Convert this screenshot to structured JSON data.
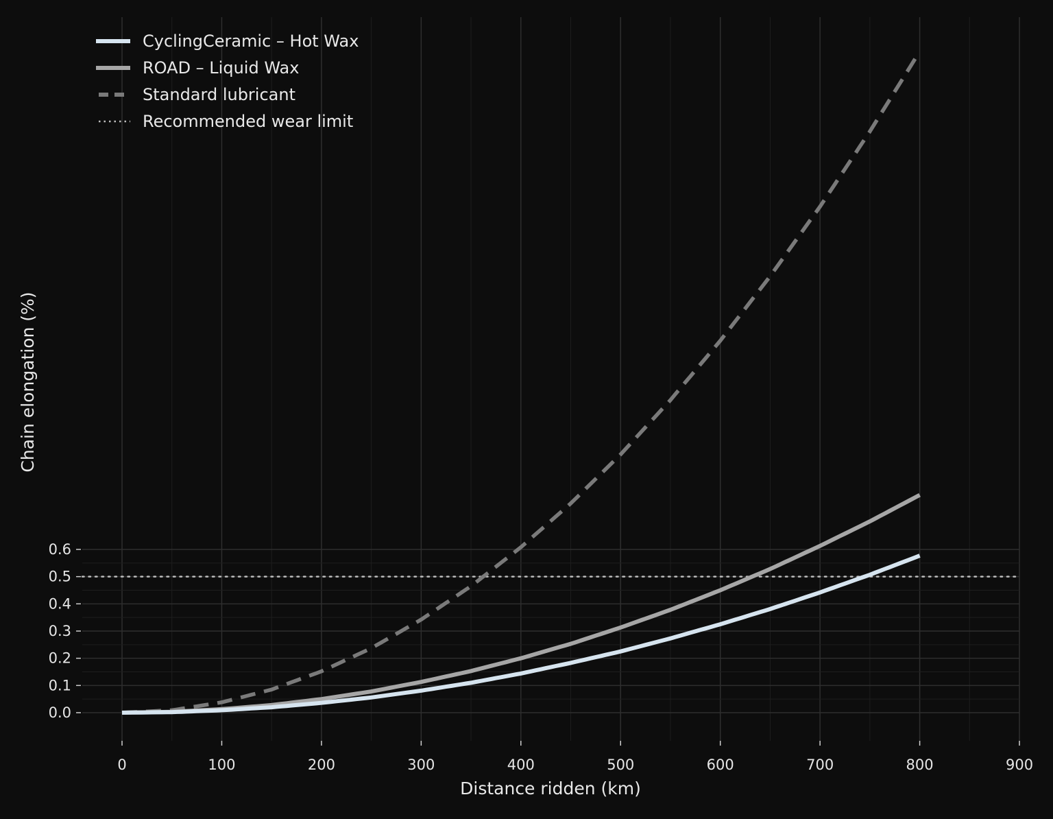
{
  "chart_data": {
    "type": "line",
    "title": "",
    "xlabel": "Distance ridden (km)",
    "ylabel": "Chain elongation (%)",
    "xlim": [
      -40,
      900
    ],
    "ylim_visible_ticks": [
      0.0,
      0.6
    ],
    "x_ticks": [
      0,
      100,
      200,
      300,
      400,
      500,
      600,
      700,
      800,
      900
    ],
    "x_tick_labels": [
      "0",
      "100",
      "200",
      "300",
      "400",
      "500",
      "600",
      "700",
      "800",
      "900"
    ],
    "y_ticks": [
      0.0,
      0.1,
      0.2,
      0.3,
      0.4,
      0.5,
      0.6
    ],
    "y_tick_labels": [
      "0.0",
      "0.1",
      "0.2",
      "0.3",
      "0.4",
      "0.5",
      "0.6"
    ],
    "grid": true,
    "legend_position": "upper left",
    "x": [
      0,
      50,
      100,
      150,
      200,
      250,
      300,
      350,
      400,
      450,
      500,
      550,
      600,
      650,
      700,
      750,
      800
    ],
    "series": [
      {
        "name": "CyclingCeramic – Hot Wax",
        "style": "solid",
        "color": "#d6e4ef",
        "values": [
          0.0,
          0.002,
          0.009,
          0.02,
          0.036,
          0.056,
          0.081,
          0.11,
          0.144,
          0.183,
          0.225,
          0.273,
          0.325,
          0.381,
          0.442,
          0.507,
          0.577
        ]
      },
      {
        "name": "ROAD – Liquid Wax",
        "style": "solid",
        "color": "#a6a6a6",
        "values": [
          0.0,
          0.003,
          0.013,
          0.028,
          0.05,
          0.078,
          0.113,
          0.153,
          0.2,
          0.253,
          0.313,
          0.378,
          0.45,
          0.528,
          0.613,
          0.703,
          0.8
        ]
      },
      {
        "name": "Standard lubricant",
        "style": "dashed",
        "color": "#7a7a7a",
        "values": [
          0.0,
          0.009,
          0.038,
          0.085,
          0.152,
          0.237,
          0.342,
          0.465,
          0.608,
          0.769,
          0.949,
          1.149,
          1.367,
          1.604,
          1.86,
          2.136,
          2.43
        ]
      }
    ],
    "reference_lines": [
      {
        "name": "Recommended wear limit",
        "style": "dotted",
        "color": "#bdbdbd",
        "y": 0.5
      }
    ]
  },
  "legend": {
    "items": [
      {
        "label": "CyclingCeramic – Hot Wax",
        "style": "solid",
        "color": "#d6e4ef"
      },
      {
        "label": "ROAD – Liquid Wax",
        "style": "solid",
        "color": "#a6a6a6"
      },
      {
        "label": "Standard lubricant",
        "style": "dashed",
        "color": "#7a7a7a"
      },
      {
        "label": "Recommended wear limit",
        "style": "dotted",
        "color": "#bdbdbd"
      }
    ]
  },
  "colors": {
    "background": "#0d0d0d",
    "grid_major": "#2e2e2e",
    "grid_minor": "#1e1e1e",
    "text": "#e6e6e6"
  }
}
